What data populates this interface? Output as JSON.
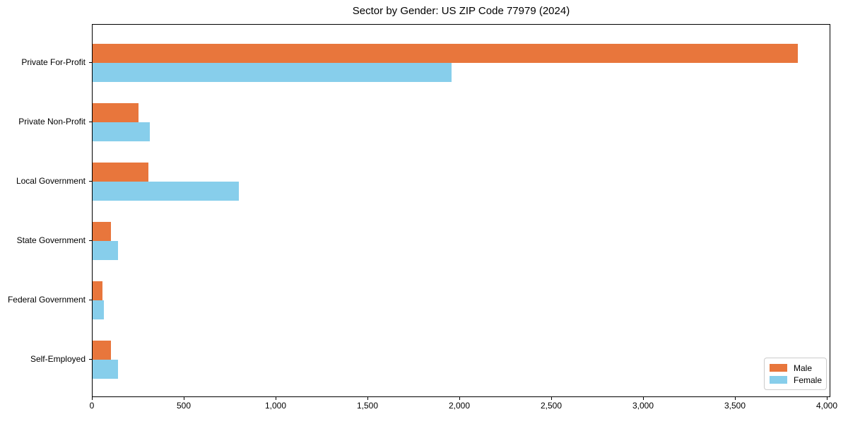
{
  "chart_data": {
    "type": "bar",
    "orientation": "horizontal",
    "title": "Sector by Gender: US ZIP Code 77979 (2024)",
    "xlabel": "",
    "ylabel": "",
    "grid": false,
    "legend_position": "lower right",
    "categories": [
      "Private For-Profit",
      "Private Non-Profit",
      "Local Government",
      "State Government",
      "Federal Government",
      "Self-Employed"
    ],
    "series": [
      {
        "name": "Male",
        "color": "#e8763c",
        "values": [
          3838,
          250,
          303,
          100,
          54,
          100
        ]
      },
      {
        "name": "Female",
        "color": "#87ceeb",
        "values": [
          1955,
          313,
          797,
          140,
          62,
          140
        ]
      }
    ],
    "xlim": [
      0,
      4020
    ],
    "xticks": [
      0,
      500,
      1000,
      1500,
      2000,
      2500,
      3000,
      3500,
      4000
    ],
    "xtick_labels": [
      "0",
      "500",
      "1,000",
      "1,500",
      "2,000",
      "2,500",
      "3,000",
      "3,500",
      "4,000"
    ]
  }
}
